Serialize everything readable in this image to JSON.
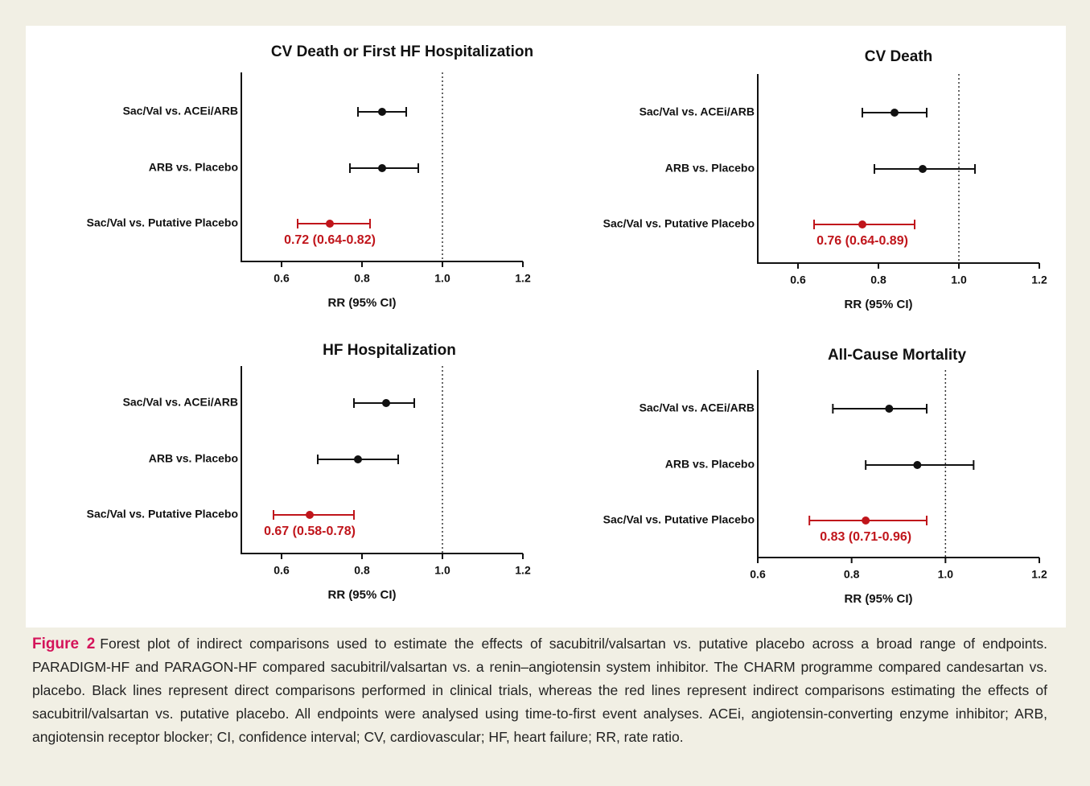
{
  "chart_data": [
    {
      "type": "forest",
      "title": "CV Death or First HF Hospitalization",
      "xlabel": "RR (95% CI)",
      "categories": [
        "Sac/Val vs. ACEi/ARB",
        "ARB vs. Placebo",
        "Sac/Val vs. Putative Placebo"
      ],
      "values": [
        0.85,
        0.85,
        0.72
      ],
      "lower": [
        0.79,
        0.77,
        0.64
      ],
      "upper": [
        0.91,
        0.94,
        0.82
      ],
      "value_labels": [
        null,
        null,
        "0.72 (0.64-0.82)"
      ],
      "colors": [
        "#111111",
        "#111111",
        "#c0151b"
      ],
      "reference_line": 1,
      "xlim": [
        0.5,
        1.2
      ],
      "xticks": [
        0.6,
        0.8,
        {
          "value": 1,
          "label": "1.0"
        },
        1.2
      ]
    },
    {
      "type": "forest",
      "title": "CV Death",
      "xlabel": "RR (95% CI)",
      "categories": [
        "Sac/Val vs. ACEi/ARB",
        "ARB vs. Placebo",
        "Sac/Val vs. Putative Placebo"
      ],
      "values": [
        0.84,
        0.91,
        0.76
      ],
      "lower": [
        0.76,
        0.79,
        0.64
      ],
      "upper": [
        0.92,
        1.04,
        0.89
      ],
      "value_labels": [
        null,
        null,
        "0.76 (0.64-0.89)"
      ],
      "colors": [
        "#111111",
        "#111111",
        "#c0151b"
      ],
      "reference_line": 1,
      "xlim": [
        0.5,
        1.2
      ],
      "xticks": [
        0.6,
        0.8,
        {
          "value": 1,
          "label": "1.0"
        },
        1.2
      ]
    },
    {
      "type": "forest",
      "title": "HF Hospitalization",
      "xlabel": "RR (95% CI)",
      "categories": [
        "Sac/Val vs. ACEi/ARB",
        "ARB vs. Placebo",
        "Sac/Val vs. Putative Placebo"
      ],
      "values": [
        0.86,
        0.79,
        0.67
      ],
      "lower": [
        0.78,
        0.69,
        0.58
      ],
      "upper": [
        0.93,
        0.89,
        0.78
      ],
      "value_labels": [
        null,
        null,
        "0.67 (0.58-0.78)"
      ],
      "colors": [
        "#111111",
        "#111111",
        "#c0151b"
      ],
      "reference_line": 1,
      "xlim": [
        0.5,
        1.2
      ],
      "xticks": [
        0.6,
        0.8,
        {
          "value": 1,
          "label": "1.0"
        },
        1.2
      ]
    },
    {
      "type": "forest",
      "title": "All-Cause Mortality",
      "xlabel": "RR (95% CI)",
      "categories": [
        "Sac/Val vs. ACEi/ARB",
        "ARB vs. Placebo",
        "Sac/Val vs. Putative Placebo"
      ],
      "values": [
        0.88,
        0.94,
        0.83
      ],
      "lower": [
        0.76,
        0.83,
        0.71
      ],
      "upper": [
        0.96,
        1.06,
        0.96
      ],
      "value_labels": [
        null,
        null,
        "0.83 (0.71-0.96)"
      ],
      "colors": [
        "#111111",
        "#111111",
        "#c0151b"
      ],
      "reference_line": 1,
      "xlim": [
        0.6,
        1.2
      ],
      "xticks": [
        0.6,
        0.8,
        {
          "value": 1,
          "label": "1.0"
        },
        1.2
      ]
    }
  ],
  "caption": {
    "label": "Figure 2",
    "text": "Forest plot of indirect comparisons used to estimate the effects of sacubitril/valsartan vs. putative placebo across a broad range of endpoints. PARADIGM-HF and PARAGON-HF compared sacubitril/valsartan vs. a renin–angiotensin system inhibitor. The CHARM programme compared candesartan vs. placebo. Black lines represent direct comparisons performed in clinical trials, whereas the red lines represent indirect comparisons estimating the effects of sacubitril/valsartan vs. putative placebo. All endpoints were analysed using time-to-first event analyses. ACEi, angiotensin-converting enzyme inhibitor; ARB, angiotensin receptor blocker; CI, confidence interval; CV, cardiovascular; HF, heart failure; RR, rate ratio."
  }
}
